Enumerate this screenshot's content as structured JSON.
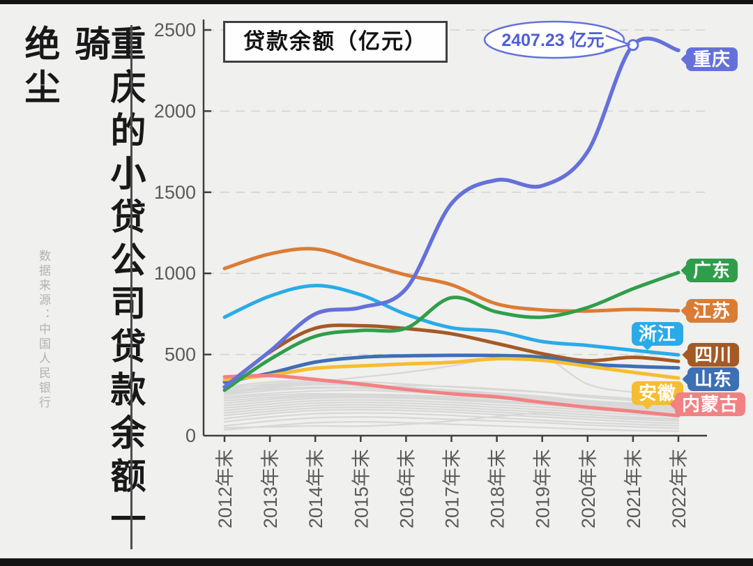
{
  "page": {
    "title_vertical_main": "重庆的小贷公司贷款余额一骑",
    "title_vertical_tail": "绝尘",
    "source_note": "数据来源：中国人民银行"
  },
  "legend": {
    "label": "贷款余额（亿元）"
  },
  "chart_data": {
    "type": "line",
    "title": "贷款余额（亿元）",
    "categories": [
      "2012年末",
      "2013年末",
      "2014年末",
      "2015年末",
      "2016年末",
      "2017年末",
      "2018年末",
      "2019年末",
      "2020年末",
      "2021年末",
      "2022年末"
    ],
    "ylim": [
      0,
      2500
    ],
    "yticks": [
      0,
      500,
      1000,
      1500,
      2000,
      2500
    ],
    "grid": "horizontal-dashed",
    "legend_position": "top-left-box",
    "annotation": {
      "text": "2407.23 亿元",
      "series": "重庆",
      "category": "2021年末",
      "value": 2407.23
    },
    "series": [
      {
        "key": "jiangsu",
        "name": "江苏",
        "color": "#db7c35",
        "values": [
          1030,
          1120,
          1150,
          1070,
          990,
          930,
          812,
          775,
          768,
          778,
          770
        ]
      },
      {
        "key": "zhejiang",
        "name": "浙江",
        "color": "#2aabe8",
        "values": [
          730,
          860,
          925,
          868,
          748,
          665,
          643,
          580,
          556,
          526,
          498
        ]
      },
      {
        "key": "sichuan",
        "name": "四川",
        "color": "#a45a24",
        "values": [
          300,
          515,
          662,
          678,
          660,
          628,
          568,
          505,
          462,
          483,
          458
        ]
      },
      {
        "key": "shandong",
        "name": "山东",
        "color": "#3d6fb5",
        "values": [
          330,
          385,
          453,
          483,
          492,
          495,
          494,
          483,
          442,
          427,
          418
        ]
      },
      {
        "key": "anhui",
        "name": "安徽",
        "color": "#f5bd30",
        "values": [
          345,
          372,
          415,
          430,
          442,
          452,
          474,
          464,
          428,
          390,
          355
        ]
      },
      {
        "key": "neimenggu",
        "name": "内蒙古",
        "color": "#f28184",
        "values": [
          362,
          370,
          346,
          318,
          285,
          258,
          239,
          205,
          175,
          150,
          123
        ]
      },
      {
        "key": "guangdong",
        "name": "广东",
        "color": "#2f9e4a",
        "values": [
          280,
          470,
          612,
          648,
          662,
          850,
          762,
          730,
          790,
          905,
          1005
        ]
      },
      {
        "key": "chongqing",
        "name": "重庆",
        "color": "#6571d9",
        "values": [
          300,
          520,
          750,
          790,
          905,
          1430,
          1575,
          1540,
          1750,
          2407.23,
          2375
        ]
      }
    ],
    "background_series_color": "#d8d8d8",
    "background_series": [
      [
        300,
        330,
        335,
        310,
        282,
        262,
        245,
        228,
        205,
        185,
        172
      ],
      [
        285,
        318,
        325,
        315,
        298,
        280,
        262,
        242,
        212,
        192,
        178
      ],
      [
        270,
        305,
        322,
        330,
        318,
        300,
        283,
        268,
        248,
        228,
        215
      ],
      [
        258,
        295,
        315,
        308,
        288,
        268,
        248,
        228,
        208,
        192,
        182
      ],
      [
        268,
        288,
        298,
        294,
        280,
        265,
        250,
        235,
        215,
        200,
        190
      ],
      [
        252,
        278,
        292,
        298,
        308,
        303,
        288,
        268,
        238,
        218,
        208
      ],
      [
        240,
        260,
        275,
        280,
        270,
        255,
        240,
        225,
        205,
        190,
        180
      ],
      [
        228,
        248,
        258,
        254,
        244,
        230,
        215,
        200,
        185,
        170,
        160
      ],
      [
        215,
        235,
        250,
        255,
        250,
        240,
        228,
        214,
        195,
        180,
        170
      ],
      [
        200,
        224,
        240,
        245,
        235,
        224,
        210,
        195,
        180,
        165,
        155
      ],
      [
        185,
        210,
        230,
        235,
        230,
        220,
        205,
        190,
        170,
        155,
        145
      ],
      [
        170,
        195,
        215,
        220,
        215,
        205,
        190,
        175,
        160,
        145,
        135
      ],
      [
        155,
        180,
        200,
        205,
        200,
        190,
        175,
        160,
        145,
        130,
        120
      ],
      [
        140,
        165,
        185,
        190,
        185,
        175,
        160,
        145,
        130,
        115,
        105
      ],
      [
        125,
        150,
        170,
        175,
        170,
        160,
        145,
        130,
        115,
        100,
        90
      ],
      [
        105,
        135,
        155,
        160,
        155,
        145,
        130,
        115,
        100,
        85,
        75
      ],
      [
        85,
        115,
        135,
        140,
        135,
        125,
        110,
        95,
        80,
        70,
        60
      ],
      [
        60,
        90,
        110,
        115,
        110,
        100,
        90,
        80,
        65,
        55,
        45
      ],
      [
        35,
        60,
        80,
        85,
        80,
        70,
        60,
        50,
        40,
        32,
        28
      ],
      [
        280,
        300,
        330,
        360,
        390,
        430,
        478,
        488,
        318,
        268,
        252
      ],
      [
        295,
        312,
        318,
        310,
        295,
        275,
        252,
        225,
        195,
        148,
        118
      ],
      [
        48,
        54,
        60,
        58,
        70,
        90,
        118,
        140,
        130,
        110,
        100
      ]
    ],
    "colors": {
      "background": "#f0f0ee",
      "axis": "#3f3f3f",
      "tick_label": "#595959",
      "gridline": "#d2d2d2",
      "annotation_stroke": "#6571d9",
      "annotation_text": "#4e5fd6"
    }
  }
}
